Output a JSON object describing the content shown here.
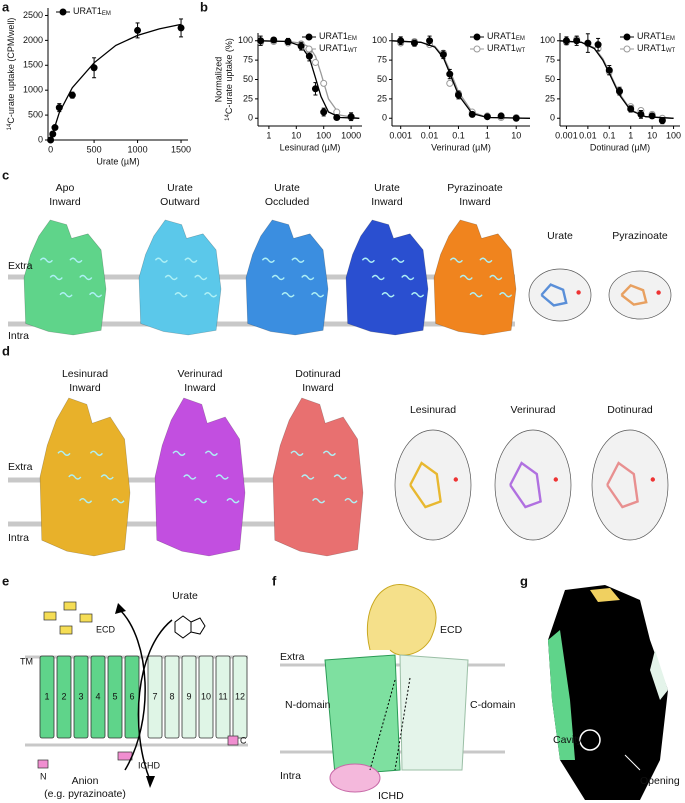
{
  "panel_labels": [
    "a",
    "b",
    "c",
    "d",
    "e",
    "f",
    "g"
  ],
  "chart_data": [
    {
      "type": "scatter",
      "xlabel": "Urate (µM)",
      "ylabel_sup": "14",
      "ylabel": "C-urate uptake (CPM/well)",
      "xlim": [
        -30,
        1580
      ],
      "xticks": [
        0,
        500,
        1000,
        1500
      ],
      "ylim": [
        0,
        2650
      ],
      "yticks": [
        0,
        500,
        1000,
        1500,
        2000,
        2500
      ],
      "legend": "upper left",
      "series": [
        {
          "name": "URAT1",
          "name_sub": "EM",
          "color": "#000000",
          "marker": "filled",
          "x": [
            0,
            25,
            50,
            100,
            250,
            500,
            1000,
            1500
          ],
          "values": [
            0,
            120,
            250,
            650,
            900,
            1450,
            2200,
            2250
          ],
          "errors": [
            0,
            30,
            40,
            80,
            60,
            200,
            150,
            180
          ],
          "fit": {
            "x": [
              0,
              100,
              250,
              500,
              750,
              1000,
              1250,
              1500
            ],
            "values": [
              0,
              550,
              1050,
              1550,
              1900,
              2100,
              2230,
              2320
            ]
          }
        }
      ]
    },
    {
      "type": "scatter",
      "xscale": "log",
      "xlabel": "Lesinurad (µM)",
      "ylabel_top": "Normalized",
      "ylabel_sup": "14",
      "ylabel": "C-urate uptake (%)",
      "xlim": [
        0.4,
        2500
      ],
      "xticks": [
        1,
        10,
        100,
        1000
      ],
      "ylim": [
        -10,
        110
      ],
      "yticks": [
        0,
        25,
        50,
        75,
        100
      ],
      "legend": "upper right",
      "series": [
        {
          "name": "URAT1",
          "name_sub": "EM",
          "color": "#000000",
          "marker": "filled",
          "x": [
            0.5,
            1.5,
            5,
            15,
            30,
            50,
            100,
            300,
            1000
          ],
          "values": [
            100,
            101,
            99,
            93,
            80,
            38,
            8,
            1,
            2
          ],
          "errors": [
            6,
            3,
            4,
            5,
            6,
            8,
            5,
            3,
            5
          ],
          "fit": {
            "x": [
              0.5,
              5,
              15,
              30,
              50,
              80,
              150,
              400,
              2000
            ],
            "values": [
              100,
              99,
              93,
              78,
              52,
              28,
              8,
              1,
              0
            ]
          }
        },
        {
          "name": "URAT1",
          "name_sub": "WT",
          "color": "#9a9a9a",
          "marker": "open",
          "x": [
            0.5,
            1.5,
            5,
            15,
            30,
            50,
            100,
            300,
            1000
          ],
          "values": [
            98,
            99,
            97,
            96,
            88,
            72,
            45,
            8,
            1
          ],
          "fit": {
            "x": [
              0.5,
              5,
              15,
              30,
              50,
              80,
              150,
              400,
              2000
            ],
            "values": [
              100,
              99,
              97,
              92,
              80,
              58,
              25,
              4,
              0
            ]
          }
        }
      ]
    },
    {
      "type": "scatter",
      "xscale": "log",
      "xlabel": "Verinurad (µM)",
      "xlim": [
        0.0005,
        30
      ],
      "xticks": [
        0.001,
        0.01,
        0.1,
        1,
        10
      ],
      "ylim": [
        -10,
        110
      ],
      "yticks": [
        0,
        25,
        50,
        75,
        100
      ],
      "legend": "upper right",
      "series": [
        {
          "name": "URAT1",
          "name_sub": "EM",
          "color": "#000000",
          "marker": "filled",
          "x": [
            0.001,
            0.003,
            0.01,
            0.03,
            0.05,
            0.1,
            0.3,
            1,
            3,
            10
          ],
          "values": [
            100,
            97,
            100,
            82,
            57,
            30,
            5,
            2,
            3,
            0
          ],
          "errors": [
            5,
            4,
            6,
            5,
            6,
            5,
            3,
            2,
            2,
            2
          ],
          "fit": {
            "x": [
              0.0005,
              0.005,
              0.015,
              0.03,
              0.05,
              0.1,
              0.3,
              1,
              30
            ],
            "values": [
              100,
              98,
              92,
              78,
              58,
              30,
              6,
              1,
              0
            ]
          }
        },
        {
          "name": "URAT1",
          "name_sub": "WT",
          "color": "#9a9a9a",
          "marker": "open",
          "x": [
            0.001,
            0.003,
            0.01,
            0.03,
            0.05,
            0.1,
            0.3,
            1,
            3,
            10
          ],
          "values": [
            97,
            99,
            95,
            84,
            45,
            32,
            8,
            3,
            1,
            1
          ],
          "fit": {
            "x": [
              0.0005,
              0.005,
              0.015,
              0.03,
              0.05,
              0.1,
              0.3,
              1,
              30
            ],
            "values": [
              100,
              98,
              93,
              80,
              62,
              34,
              8,
              1,
              0
            ]
          }
        }
      ]
    },
    {
      "type": "scatter",
      "xscale": "log",
      "xlabel": "Dotinurad (µM)",
      "xlim": [
        0.0005,
        200
      ],
      "xticks": [
        0.001,
        0.01,
        0.1,
        1,
        10,
        100
      ],
      "ylim": [
        -10,
        110
      ],
      "yticks": [
        0,
        25,
        50,
        75,
        100
      ],
      "legend": "upper right",
      "series": [
        {
          "name": "URAT1",
          "name_sub": "EM",
          "color": "#000000",
          "marker": "filled",
          "x": [
            0.001,
            0.003,
            0.01,
            0.03,
            0.1,
            0.3,
            1,
            3,
            10,
            30
          ],
          "values": [
            100,
            100,
            97,
            95,
            62,
            35,
            12,
            5,
            3,
            -3
          ],
          "errors": [
            5,
            6,
            12,
            8,
            6,
            5,
            4,
            5,
            3,
            4
          ],
          "fit": {
            "x": [
              0.0005,
              0.005,
              0.02,
              0.05,
              0.1,
              0.3,
              1,
              5,
              100
            ],
            "values": [
              100,
              98,
              90,
              75,
              58,
              30,
              10,
              2,
              0
            ]
          }
        },
        {
          "name": "URAT1",
          "name_sub": "WT",
          "color": "#9a9a9a",
          "marker": "open",
          "x": [
            0.001,
            0.003,
            0.01,
            0.03,
            0.1,
            0.3,
            1,
            3,
            10,
            30
          ],
          "values": [
            98,
            102,
            96,
            90,
            60,
            34,
            15,
            10,
            5,
            0
          ],
          "fit": {
            "x": [
              0.0005,
              0.005,
              0.02,
              0.05,
              0.1,
              0.3,
              1,
              5,
              100
            ],
            "values": [
              100,
              98,
              91,
              77,
              60,
              32,
              11,
              2,
              0
            ]
          }
        }
      ]
    }
  ],
  "panel_c": {
    "states": [
      [
        "Apo",
        "Inward"
      ],
      [
        "Urate",
        "Outward"
      ],
      [
        "Urate",
        "Occluded"
      ],
      [
        "Urate",
        "Inward"
      ],
      [
        "Pyrazinoate",
        "Inward"
      ]
    ],
    "extra": "Extra",
    "intra": "Intra",
    "ligands": [
      "Urate",
      "Pyrazinoate"
    ]
  },
  "panel_d": {
    "states": [
      [
        "Lesinurad",
        "Inward"
      ],
      [
        "Verinurad",
        "Inward"
      ],
      [
        "Dotinurad",
        "Inward"
      ]
    ],
    "extra": "Extra",
    "intra": "Intra",
    "ligands": [
      "Lesinurad",
      "Verinurad",
      "Dotinurad"
    ]
  },
  "panel_e": {
    "tm": "TM",
    "ecd": "ECD",
    "urate": "Urate",
    "helices": [
      "1",
      "2",
      "3",
      "4",
      "5",
      "6",
      "7",
      "8",
      "9",
      "10",
      "11",
      "12"
    ],
    "n": "N",
    "c": "C",
    "ichd": "ICHD",
    "anion": "Anion",
    "anion_note": "(e.g. pyrazinoate)"
  },
  "panel_f": {
    "ecd": "ECD",
    "extra": "Extra",
    "n_domain": "N-domain",
    "c_domain": "C-domain",
    "intra": "Intra",
    "ichd": "ICHD"
  },
  "panel_g": {
    "cavity": "Cavity",
    "opening": "Opening"
  }
}
